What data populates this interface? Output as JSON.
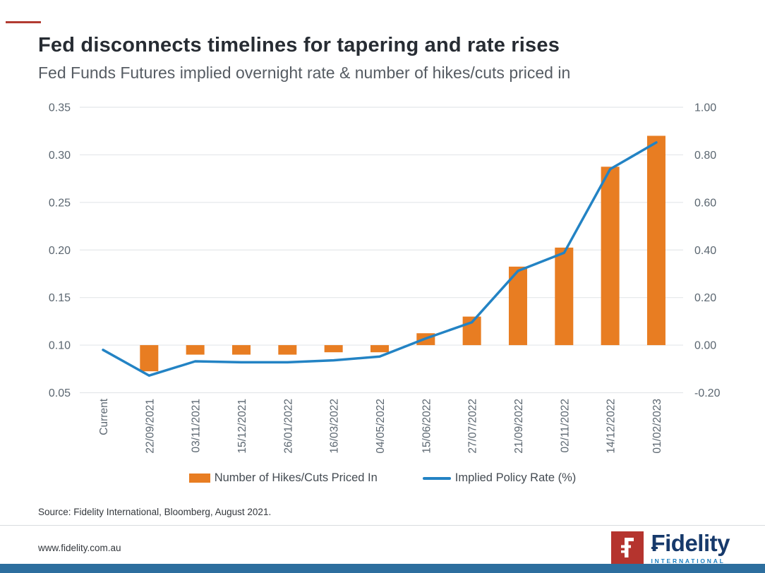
{
  "header": {
    "title": "Fed disconnects timelines for tapering and rate rises",
    "subtitle": "Fed Funds Futures implied overnight rate & number of hikes/cuts priced in"
  },
  "chart_data": {
    "type": "bar",
    "subtype": "combo-bar-line-dual-axis",
    "categories": [
      "Current",
      "22/09/2021",
      "03/11/2021",
      "15/12/2021",
      "26/01/2022",
      "16/03/2022",
      "04/05/2022",
      "15/06/2022",
      "27/07/2022",
      "21/09/2022",
      "02/11/2022",
      "14/12/2022",
      "01/02/2023"
    ],
    "series": [
      {
        "name": "Number of Hikes/Cuts Priced In",
        "type": "bar",
        "axis": "right",
        "color": "#E87D22",
        "values": [
          0,
          -0.11,
          -0.04,
          -0.04,
          -0.04,
          -0.03,
          -0.03,
          0.05,
          0.12,
          0.33,
          0.41,
          0.75,
          0.88
        ]
      },
      {
        "name": "Implied Policy Rate (%)",
        "type": "line",
        "axis": "left",
        "color": "#2383C4",
        "values": [
          0.095,
          0.068,
          0.083,
          0.082,
          0.082,
          0.084,
          0.088,
          0.107,
          0.124,
          0.178,
          0.197,
          0.285,
          0.313
        ]
      }
    ],
    "left_axis": {
      "min": 0.05,
      "max": 0.35,
      "step": 0.05,
      "ticks": [
        "0.35",
        "0.30",
        "0.25",
        "0.20",
        "0.15",
        "0.10",
        "0.05"
      ]
    },
    "right_axis": {
      "min": -0.2,
      "max": 1.0,
      "step": 0.2,
      "ticks": [
        "1.00",
        "0.80",
        "0.60",
        "0.40",
        "0.20",
        "0.00",
        "-0.20"
      ],
      "bar_baseline": 0.0
    },
    "grid": true,
    "legend_position": "bottom",
    "title": "Fed disconnects timelines for tapering and rate rises",
    "xlabel": "",
    "ylabel": ""
  },
  "source": {
    "text": "Source: Fidelity International, Bloomberg, August 2021."
  },
  "footer": {
    "url": "www.fidelity.com.au",
    "logo": {
      "brand": "Fidelity",
      "sub": "INTERNATIONAL"
    }
  },
  "colors": {
    "bar": "#E87D22",
    "line": "#2383C4",
    "gridline": "#e4e7ea",
    "axis_text": "#5b6670",
    "title_text": "#272c33",
    "subtitle_text": "#565c63",
    "logo_red": "#b5342e",
    "logo_navy": "#16396b",
    "logo_blue": "#1a7fc1",
    "bottom_bar": "#2d6e9e",
    "accent_dash": "#b23b32"
  }
}
